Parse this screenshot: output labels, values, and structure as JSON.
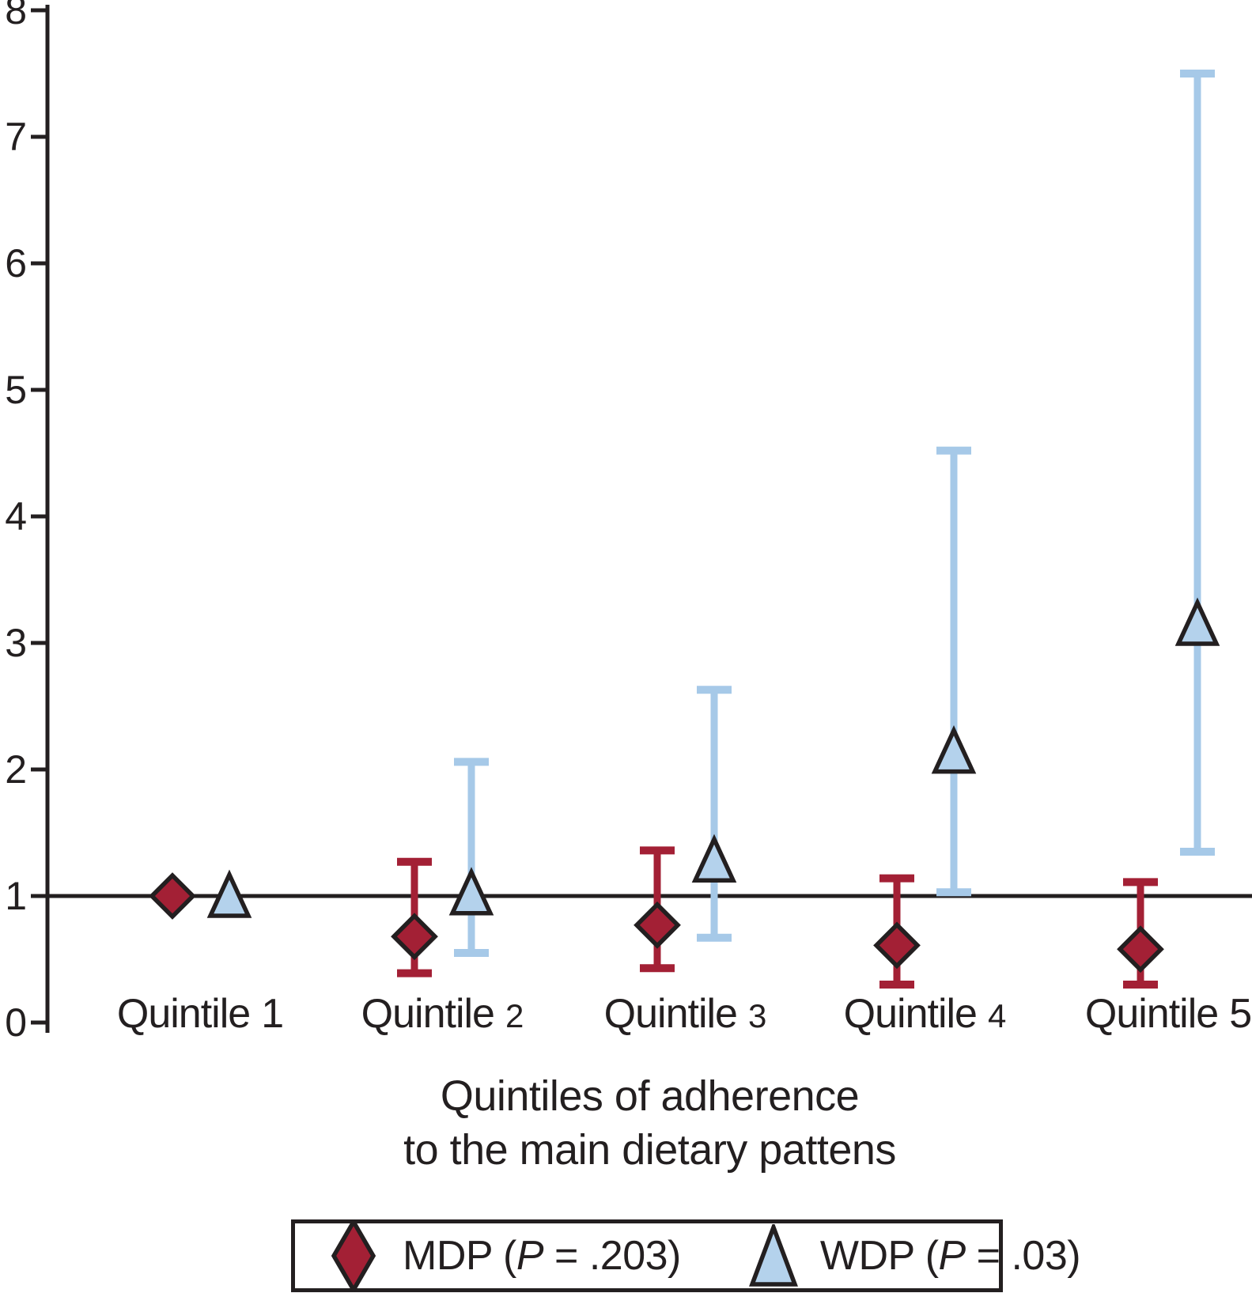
{
  "figure": {
    "kind": "forest-style point-estimate plot with 95% CI error bars",
    "background": "#FFFFFF"
  },
  "chart_data": {
    "type": "scatter",
    "subtype": "point estimates with error bars (relative risk vs reference quintile)",
    "title": "",
    "xlabel_lines": [
      "Quintiles of adherence",
      "to the main dietary pattens"
    ],
    "ylabel": "",
    "ylim": [
      0,
      8
    ],
    "yticks": [
      0,
      1,
      2,
      3,
      4,
      5,
      6,
      7,
      8
    ],
    "ytick_labels": [
      "0",
      "1",
      "2",
      "3",
      "4",
      "5",
      "6",
      "7",
      "8"
    ],
    "reference_line_y": 1,
    "grid": false,
    "legend_position": "bottom",
    "categories": [
      "Quintile 1",
      "Quintile 2",
      "Quintile 3",
      "Quintile 4",
      "Quintile 5"
    ],
    "category_parts": [
      {
        "word": "Quintile",
        "num": "1"
      },
      {
        "word": "Quintile",
        "num": "2"
      },
      {
        "word": "Quintile",
        "num": "3"
      },
      {
        "word": "Quintile",
        "num": "4"
      },
      {
        "word": "Quintile",
        "num": "5"
      }
    ],
    "series": [
      {
        "name": "MDP",
        "p_value": ".203",
        "marker": "diamond",
        "color": "#A32035",
        "bar_color": "#A32035",
        "outline_color": "#231F20",
        "values": [
          1.0,
          0.68,
          0.77,
          0.61,
          0.58
        ],
        "ci_low": [
          null,
          0.39,
          0.43,
          0.3,
          0.3
        ],
        "ci_high": [
          null,
          1.27,
          1.36,
          1.14,
          1.11
        ],
        "legend": {
          "prefix": "MDP (",
          "p": "P",
          "suffix": " = .203)"
        }
      },
      {
        "name": "WDP",
        "p_value": ".03",
        "marker": "triangle",
        "color": "#B4D2EC",
        "bar_color": "#A6C9E8",
        "outline_color": "#231F20",
        "values": [
          1.0,
          1.02,
          1.28,
          2.14,
          3.15
        ],
        "ci_low": [
          null,
          0.55,
          0.67,
          1.03,
          1.35
        ],
        "ci_high": [
          null,
          2.06,
          2.63,
          4.52,
          7.5
        ],
        "legend": {
          "prefix": "WDP (",
          "p": "P",
          "suffix": " = .03)"
        }
      }
    ],
    "colors": {
      "text": "#231F20",
      "axis": "#231F20",
      "background": "#FFFFFF"
    }
  }
}
